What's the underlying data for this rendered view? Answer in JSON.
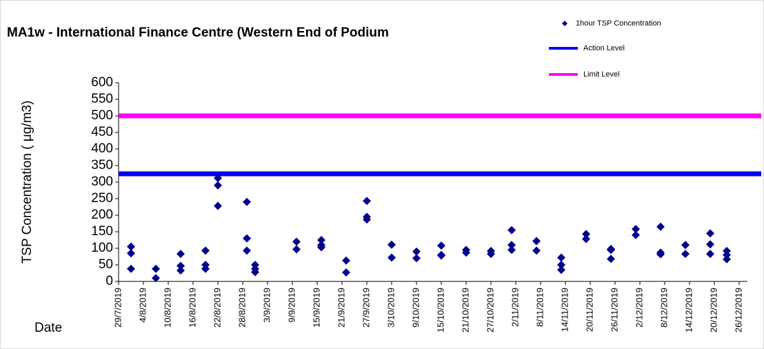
{
  "chart_data": {
    "type": "scatter",
    "title": "MA1w - International Finance Centre (Western End of Podium",
    "y_label": "TSP Concentration ( μg/m3)",
    "x_label": "Date",
    "series": [
      {
        "name": "1hour TSP Concentration",
        "color": "#00008b",
        "x": [
          "2019-08-01",
          "2019-08-01",
          "2019-08-01",
          "2019-08-07",
          "2019-08-07",
          "2019-08-13",
          "2019-08-13",
          "2019-08-13",
          "2019-08-19",
          "2019-08-19",
          "2019-08-19",
          "2019-08-22",
          "2019-08-22",
          "2019-08-22",
          "2019-08-29",
          "2019-08-29",
          "2019-08-29",
          "2019-08-31",
          "2019-08-31",
          "2019-08-31",
          "2019-09-10",
          "2019-09-10",
          "2019-09-16",
          "2019-09-16",
          "2019-09-16",
          "2019-09-22",
          "2019-09-22",
          "2019-09-27",
          "2019-09-27",
          "2019-09-27",
          "2019-10-03",
          "2019-10-03",
          "2019-10-09",
          "2019-10-09",
          "2019-10-15",
          "2019-10-15",
          "2019-10-15",
          "2019-10-21",
          "2019-10-21",
          "2019-10-27",
          "2019-10-27",
          "2019-11-01",
          "2019-11-01",
          "2019-11-01",
          "2019-11-07",
          "2019-11-07",
          "2019-11-13",
          "2019-11-13",
          "2019-11-13",
          "2019-11-19",
          "2019-11-19",
          "2019-11-25",
          "2019-11-25",
          "2019-11-25",
          "2019-12-01",
          "2019-12-01",
          "2019-12-07",
          "2019-12-07",
          "2019-12-07",
          "2019-12-13",
          "2019-12-13",
          "2019-12-19",
          "2019-12-19",
          "2019-12-19",
          "2019-12-23",
          "2019-12-23",
          "2019-12-23"
        ],
        "values": [
          105,
          85,
          38,
          38,
          10,
          83,
          47,
          33,
          93,
          50,
          38,
          312,
          290,
          228,
          240,
          130,
          93,
          50,
          38,
          28,
          120,
          97,
          125,
          110,
          103,
          63,
          27,
          243,
          195,
          187,
          111,
          72,
          90,
          70,
          108,
          80,
          78,
          95,
          87,
          92,
          83,
          155,
          110,
          95,
          122,
          93,
          72,
          50,
          35,
          143,
          128,
          98,
          95,
          68,
          158,
          140,
          165,
          87,
          82,
          110,
          83,
          145,
          112,
          83,
          92,
          80,
          67
        ]
      }
    ],
    "reference_lines": [
      {
        "name": "Action Level",
        "value": 325,
        "color": "#0000ff"
      },
      {
        "name": "Limit Level",
        "value": 500,
        "color": "#ff00ff"
      }
    ],
    "xlim": [
      "2019-07-29",
      "2019-12-28"
    ],
    "xticks": [
      {
        "value": "2019-07-29",
        "label": "29/7/2019"
      },
      {
        "value": "2019-08-04",
        "label": "4/8/2019"
      },
      {
        "value": "2019-08-10",
        "label": "10/8/2019"
      },
      {
        "value": "2019-08-16",
        "label": "16/8/2019"
      },
      {
        "value": "2019-08-22",
        "label": "22/8/2019"
      },
      {
        "value": "2019-08-28",
        "label": "28/8/2019"
      },
      {
        "value": "2019-09-03",
        "label": "3/9/2019"
      },
      {
        "value": "2019-09-09",
        "label": "9/9/2019"
      },
      {
        "value": "2019-09-15",
        "label": "15/9/2019"
      },
      {
        "value": "2019-09-21",
        "label": "21/9/2019"
      },
      {
        "value": "2019-09-27",
        "label": "27/9/2019"
      },
      {
        "value": "2019-10-03",
        "label": "3/10/2019"
      },
      {
        "value": "2019-10-09",
        "label": "9/10/2019"
      },
      {
        "value": "2019-10-15",
        "label": "15/10/2019"
      },
      {
        "value": "2019-10-21",
        "label": "21/10/2019"
      },
      {
        "value": "2019-10-27",
        "label": "27/10/2019"
      },
      {
        "value": "2019-11-02",
        "label": "2/11/2019"
      },
      {
        "value": "2019-11-08",
        "label": "8/11/2019"
      },
      {
        "value": "2019-11-14",
        "label": "14/11/2019"
      },
      {
        "value": "2019-11-20",
        "label": "20/11/2019"
      },
      {
        "value": "2019-11-26",
        "label": "26/11/2019"
      },
      {
        "value": "2019-12-02",
        "label": "2/12/2019"
      },
      {
        "value": "2019-12-08",
        "label": "8/12/2019"
      },
      {
        "value": "2019-12-14",
        "label": "14/12/2019"
      },
      {
        "value": "2019-12-20",
        "label": "20/12/2019"
      },
      {
        "value": "2019-12-26",
        "label": "26/12/2019"
      }
    ],
    "ylim": [
      0,
      600
    ],
    "yticks": [
      0,
      50,
      100,
      150,
      200,
      250,
      300,
      350,
      400,
      450,
      500,
      550,
      600
    ],
    "grid": false,
    "legend": "top-right"
  }
}
